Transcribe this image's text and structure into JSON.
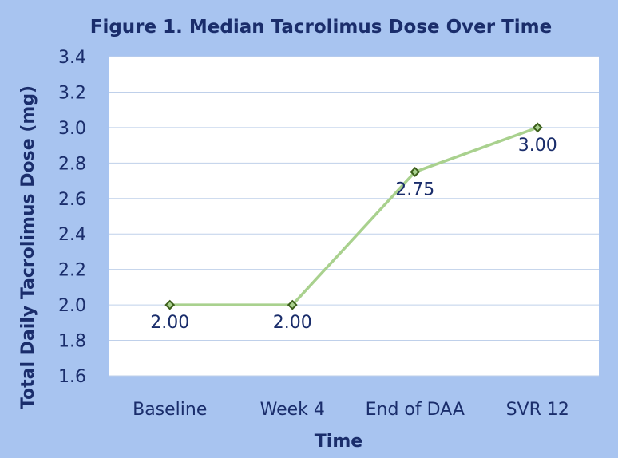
{
  "chart_data": {
    "type": "line",
    "title": "Figure 1. Median Tacrolimus Dose Over Time",
    "xlabel": "Time",
    "ylabel": "Total Daily Tacrolimus Dose (mg)",
    "categories": [
      "Baseline",
      "Week 4",
      "End of DAA",
      "SVR 12"
    ],
    "series": [
      {
        "values": [
          2.0,
          2.0,
          2.75,
          3.0
        ]
      }
    ],
    "data_labels": [
      "2.00",
      "2.00",
      "2.75",
      "3.00"
    ],
    "ylim": [
      1.6,
      3.4
    ],
    "yticks": [
      "1.6",
      "1.8",
      "2.0",
      "2.2",
      "2.4",
      "2.6",
      "2.8",
      "3.0",
      "3.2",
      "3.4"
    ],
    "grid": true,
    "legend": "none",
    "colors": {
      "background": "#a8c4f0",
      "plot_area": "#ffffff",
      "line": "#a9d18e",
      "marker_fill": "#a9d18e",
      "marker_edge": "#3b5e1a",
      "text": "#1a2d6b",
      "grid": "#bfd0ea"
    }
  }
}
